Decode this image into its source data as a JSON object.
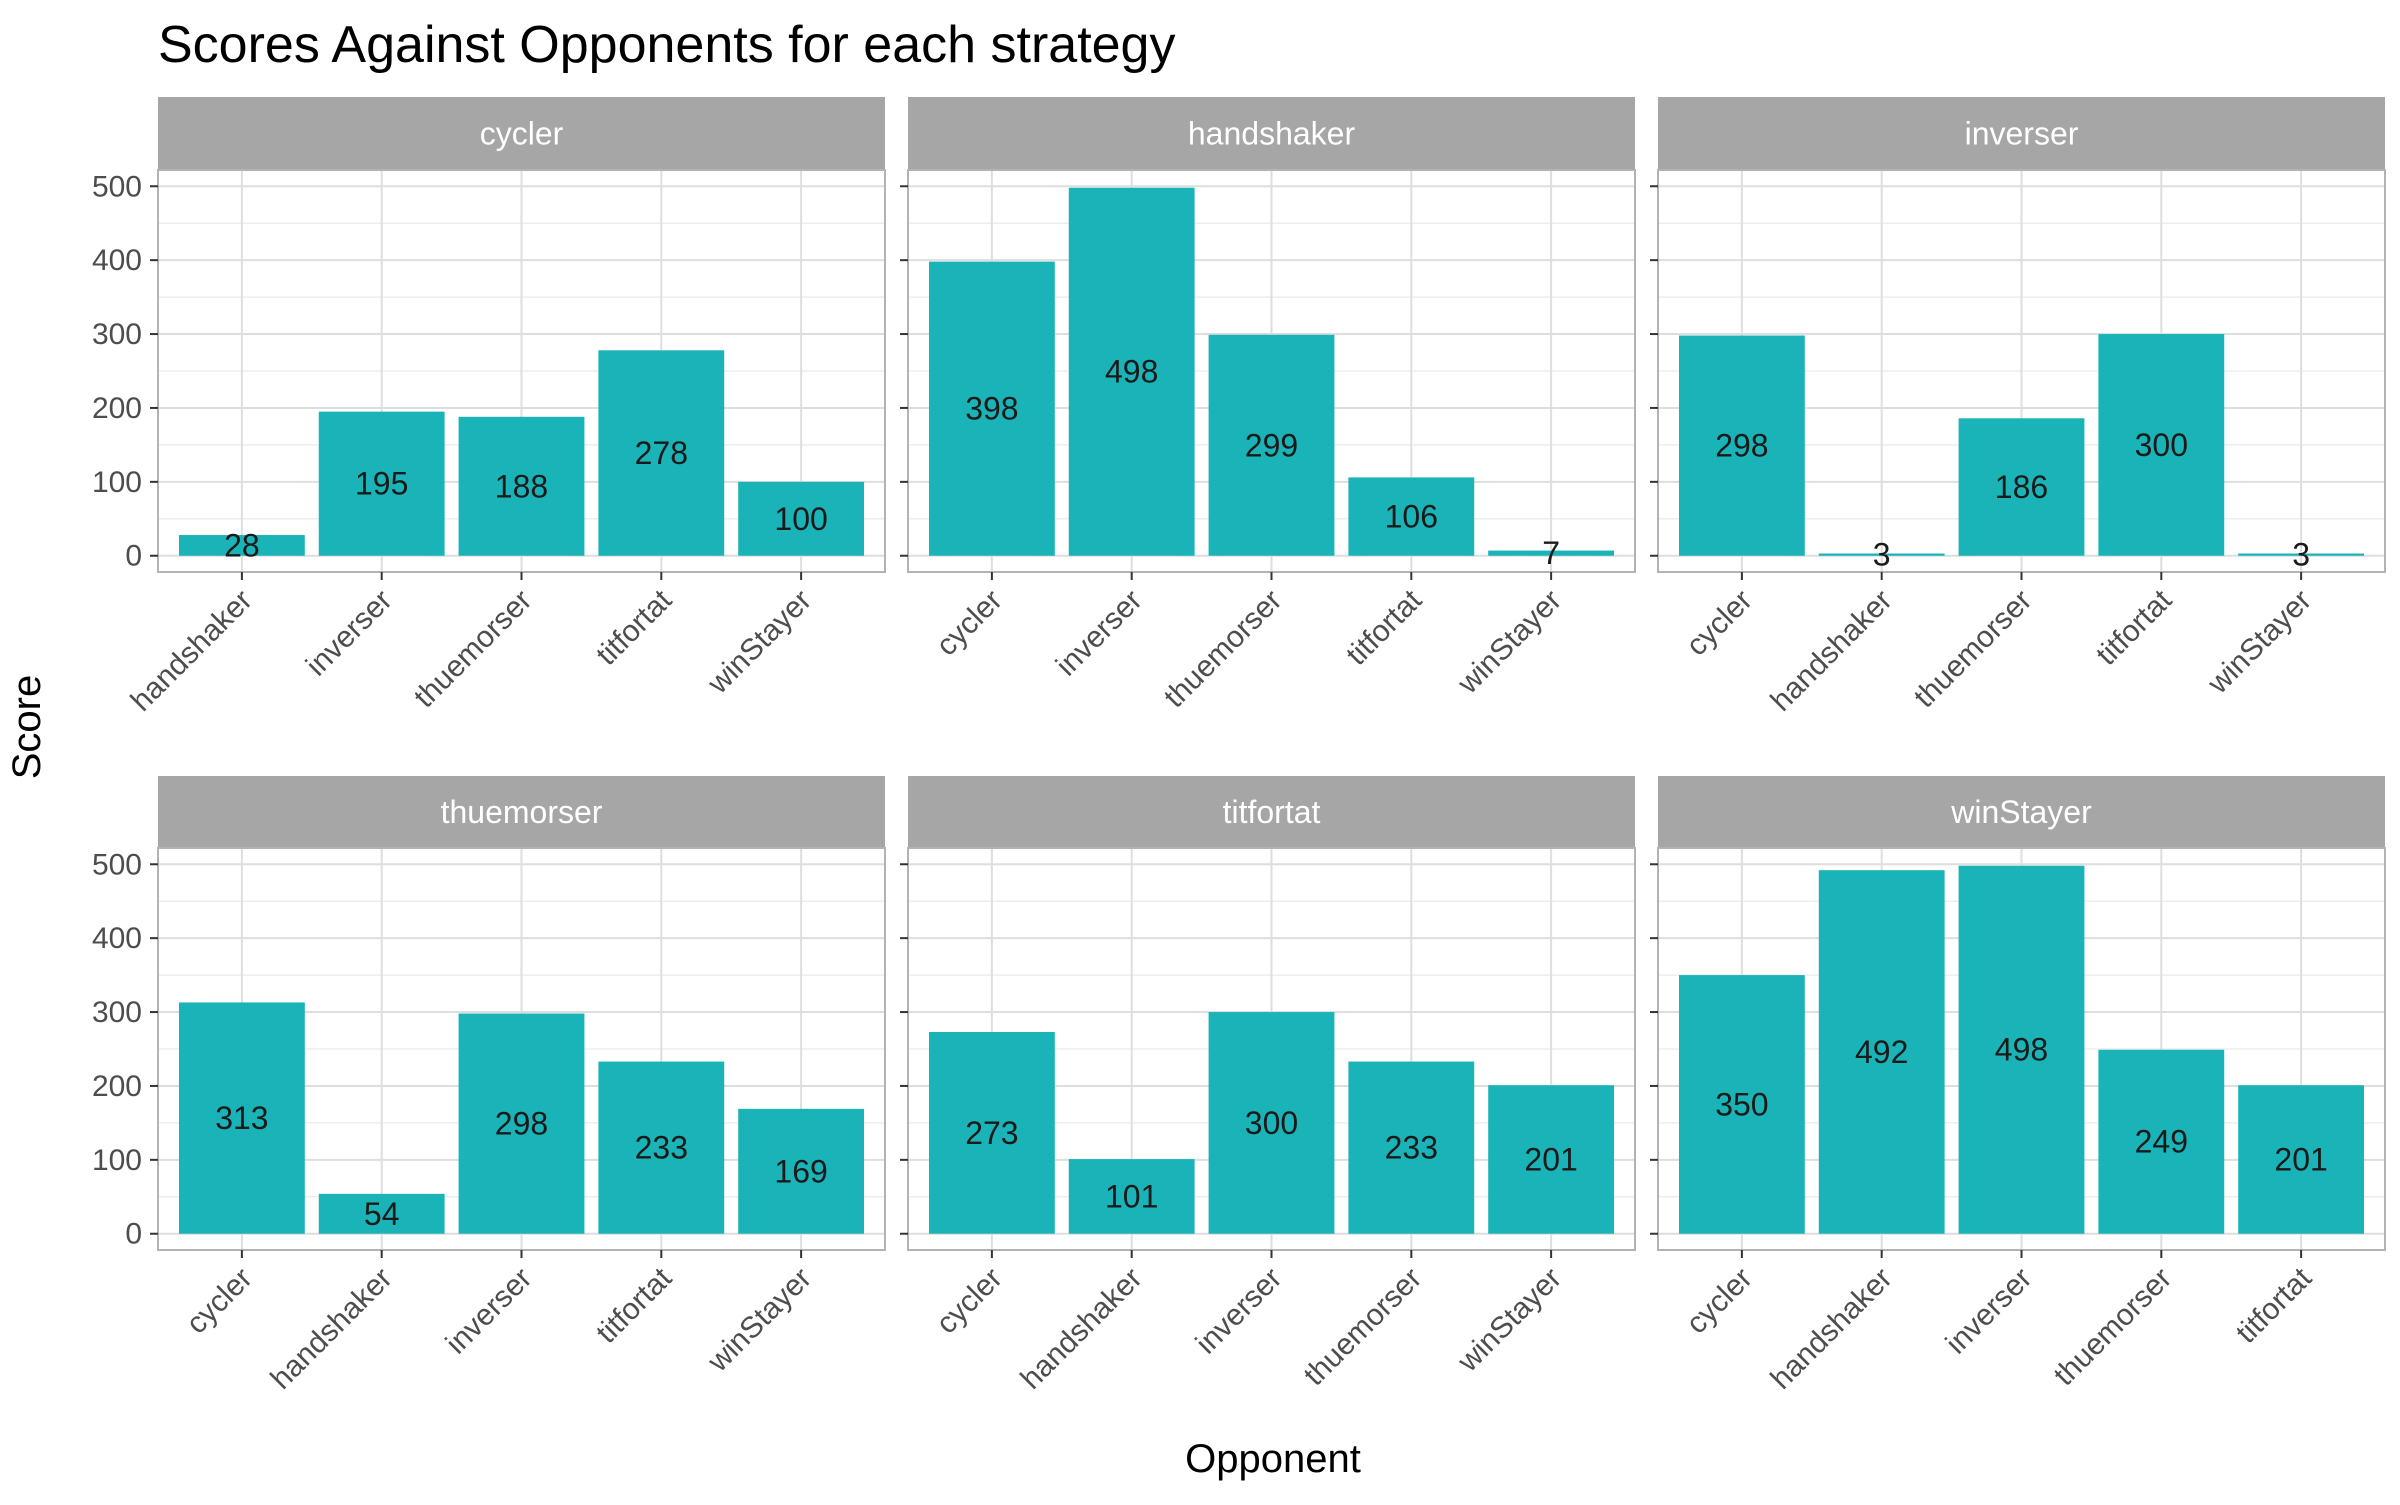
{
  "chart_data": {
    "type": "bar",
    "title": "Scores Against Opponents for each strategy",
    "xlabel": "Opponent",
    "ylabel": "Score",
    "ylim": [
      -22,
      522
    ],
    "y_ticks": [
      0,
      100,
      200,
      300,
      400,
      500
    ],
    "grid": true,
    "bar_color": "#1ab3b7",
    "strip_color": "#a6a6a6",
    "facets": [
      {
        "strategy": "cycler",
        "categories": [
          "handshaker",
          "inverser",
          "thuemorser",
          "titfortat",
          "winStayer"
        ],
        "values": [
          28,
          195,
          188,
          278,
          100
        ]
      },
      {
        "strategy": "handshaker",
        "categories": [
          "cycler",
          "inverser",
          "thuemorser",
          "titfortat",
          "winStayer"
        ],
        "values": [
          398,
          498,
          299,
          106,
          7
        ]
      },
      {
        "strategy": "inverser",
        "categories": [
          "cycler",
          "handshaker",
          "thuemorser",
          "titfortat",
          "winStayer"
        ],
        "values": [
          298,
          3,
          186,
          300,
          3
        ]
      },
      {
        "strategy": "thuemorser",
        "categories": [
          "cycler",
          "handshaker",
          "inverser",
          "titfortat",
          "winStayer"
        ],
        "values": [
          313,
          54,
          298,
          233,
          169
        ]
      },
      {
        "strategy": "titfortat",
        "categories": [
          "cycler",
          "handshaker",
          "inverser",
          "thuemorser",
          "winStayer"
        ],
        "values": [
          273,
          101,
          300,
          233,
          201
        ]
      },
      {
        "strategy": "winStayer",
        "categories": [
          "cycler",
          "handshaker",
          "inverser",
          "thuemorser",
          "titfortat"
        ],
        "values": [
          350,
          492,
          498,
          249,
          201
        ]
      }
    ]
  }
}
